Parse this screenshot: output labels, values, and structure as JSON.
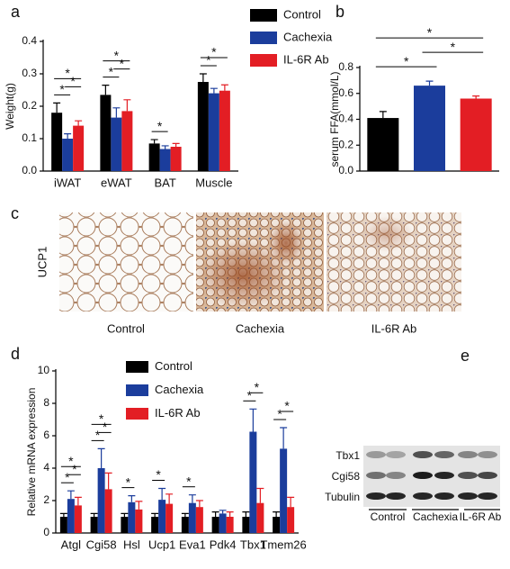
{
  "chart_data": [
    {
      "type": "bar",
      "panel": "a",
      "ylabel": "Weight(g)",
      "categories": [
        "iWAT",
        "eWAT",
        "BAT",
        "Muscle"
      ],
      "series": [
        {
          "name": "Control",
          "color": "#000000",
          "values": [
            0.18,
            0.235,
            0.085,
            0.275
          ],
          "errors": [
            0.03,
            0.03,
            0.012,
            0.025
          ]
        },
        {
          "name": "Cachexia",
          "color": "#1b3d9c",
          "values": [
            0.1,
            0.165,
            0.068,
            0.24
          ],
          "errors": [
            0.015,
            0.03,
            0.01,
            0.015
          ]
        },
        {
          "name": "IL-6R Ab",
          "color": "#e31e24",
          "values": [
            0.14,
            0.185,
            0.075,
            0.248
          ],
          "errors": [
            0.015,
            0.035,
            0.01,
            0.018
          ]
        }
      ],
      "ylim": [
        0,
        0.4
      ],
      "yticks": [
        {
          "value": 0,
          "label": "0.0"
        },
        0.1,
        0.2,
        0.3,
        0.4
      ],
      "legend": true,
      "significance": [
        {
          "label": "*",
          "category": 0,
          "pair": [
            0,
            1
          ]
        },
        {
          "label": "*",
          "category": 0,
          "pair": [
            1,
            2
          ]
        },
        {
          "label": "*",
          "category": 0,
          "pair": [
            0,
            2
          ]
        },
        {
          "label": "*",
          "category": 1,
          "pair": [
            0,
            1
          ]
        },
        {
          "label": "*",
          "category": 1,
          "pair": [
            1,
            2
          ]
        },
        {
          "label": "*",
          "category": 1,
          "pair": [
            0,
            2
          ]
        },
        {
          "label": "*",
          "category": 2,
          "pair": [
            0,
            1
          ]
        },
        {
          "label": "*",
          "category": 3,
          "pair": [
            0,
            1
          ]
        },
        {
          "label": "*",
          "category": 3,
          "pair": [
            0,
            2
          ]
        }
      ]
    },
    {
      "type": "bar",
      "panel": "b",
      "ylabel": "serum FFA(mmol/L)",
      "categories": [
        null,
        null,
        null
      ],
      "values": [
        0.41,
        0.66,
        0.56
      ],
      "errors": [
        0.05,
        0.035,
        0.02
      ],
      "colors": [
        "#000000",
        "#1b3d9c",
        "#e31e24"
      ],
      "ylim": [
        0,
        0.8
      ],
      "yticks": [
        {
          "value": 0,
          "label": "0.0"
        },
        {
          "value": 0.2,
          "label": "0.2"
        },
        {
          "value": 0.4,
          "label": "0.4"
        },
        {
          "value": 0.6,
          "label": "0.6"
        },
        {
          "value": 0.8,
          "label": "0.8"
        }
      ],
      "significance": [
        {
          "label": "*",
          "pair": [
            0,
            1
          ]
        },
        {
          "label": "*",
          "pair": [
            1,
            2
          ]
        },
        {
          "label": "*",
          "pair": [
            0,
            2
          ]
        }
      ]
    },
    {
      "type": "bar",
      "panel": "d",
      "ylabel": "Relative mRNA expression",
      "categories": [
        "Atgl",
        "Cgi58",
        "Hsl",
        "Ucp1",
        "Eva1",
        "Pdk4",
        "Tbx1",
        "Tmem26"
      ],
      "series": [
        {
          "name": "Control",
          "color": "#000000",
          "values": [
            1,
            1,
            1,
            1,
            1,
            1,
            1,
            1
          ],
          "errors": [
            0.2,
            0.2,
            0.2,
            0.2,
            0.2,
            0.3,
            0.3,
            0.3
          ]
        },
        {
          "name": "Cachexia",
          "color": "#1b3d9c",
          "values": [
            2.1,
            4.0,
            1.9,
            2.05,
            1.85,
            1.2,
            6.25,
            5.2
          ],
          "errors": [
            0.5,
            1.2,
            0.4,
            0.7,
            0.5,
            0.2,
            1.4,
            1.3
          ]
        },
        {
          "name": "IL-6R Ab",
          "color": "#e31e24",
          "values": [
            1.7,
            2.7,
            1.45,
            1.8,
            1.6,
            1.0,
            1.85,
            1.6
          ],
          "errors": [
            0.5,
            1.0,
            0.5,
            0.6,
            0.4,
            0.3,
            0.9,
            0.6
          ]
        }
      ],
      "ylim": [
        0,
        10
      ],
      "yticks": [
        0,
        2,
        4,
        6,
        8,
        10
      ],
      "legend": true,
      "significance": [
        {
          "label": "*",
          "category": 0,
          "pair": [
            0,
            1
          ]
        },
        {
          "label": "*",
          "category": 0,
          "pair": [
            1,
            2
          ]
        },
        {
          "label": "*",
          "category": 0,
          "pair": [
            0,
            2
          ]
        },
        {
          "label": "*",
          "category": 1,
          "pair": [
            0,
            1
          ]
        },
        {
          "label": "*",
          "category": 1,
          "pair": [
            1,
            2
          ]
        },
        {
          "label": "*",
          "category": 1,
          "pair": [
            0,
            2
          ]
        },
        {
          "label": "*",
          "category": 2,
          "pair": [
            0,
            1
          ]
        },
        {
          "label": "*",
          "category": 3,
          "pair": [
            0,
            1
          ]
        },
        {
          "label": "*",
          "category": 4,
          "pair": [
            0,
            1
          ]
        },
        {
          "label": "*",
          "category": 6,
          "pair": [
            0,
            1
          ]
        },
        {
          "label": "*",
          "category": 6,
          "pair": [
            1,
            2
          ]
        },
        {
          "label": "*",
          "category": 7,
          "pair": [
            0,
            1
          ]
        },
        {
          "label": "*",
          "category": 7,
          "pair": [
            1,
            2
          ]
        }
      ]
    }
  ],
  "panel_c": {
    "label": "c",
    "row_label": "UCP1",
    "captions": [
      "Control",
      "Cachexia",
      "IL-6R Ab"
    ]
  },
  "panel_e": {
    "label": "e",
    "rows": [
      "Tbx1",
      "Cgi58",
      "Tubulin"
    ],
    "groups": [
      "Control",
      "Cachexia",
      "IL-6R Ab"
    ]
  }
}
